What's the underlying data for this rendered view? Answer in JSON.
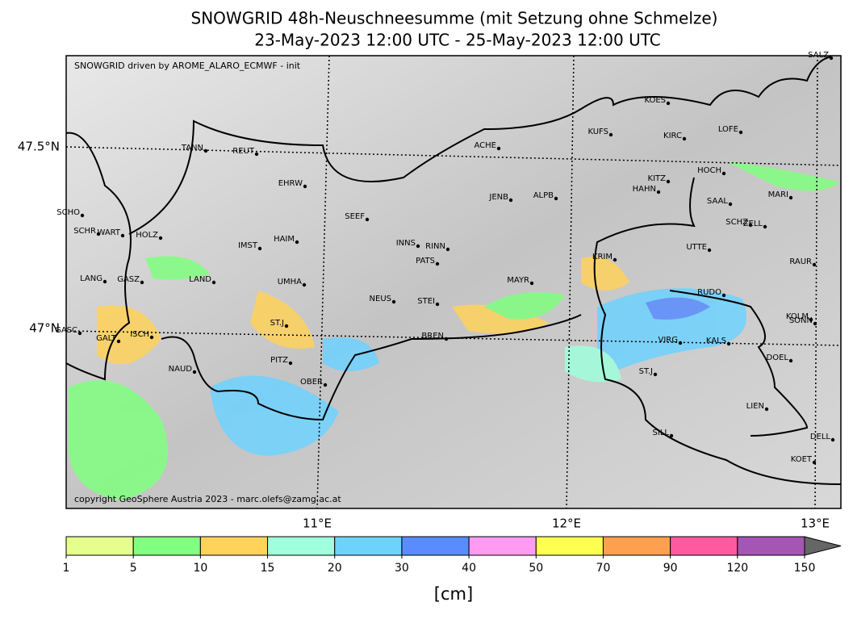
{
  "header": {
    "title": "SNOWGRID 48h-Neuschneesumme (mit Setzung ohne Schmelze)",
    "subtitle": "23-May-2023 12:00 UTC - 25-May-2023 12:00 UTC"
  },
  "map": {
    "source": "SNOWGRID driven by AROME_ALARO_ECMWF - init",
    "copyright": "copyright GeoSphere Austria 2023 - marc.olefs@zamg.ac.at",
    "lat_labels": [
      "47.5°N",
      "47°N"
    ],
    "lon_labels": [
      "11°E",
      "12°E",
      "13°E"
    ],
    "stations": [
      "TANN",
      "REUT",
      "ACHE",
      "KUFS",
      "KOES",
      "KIRC",
      "LOFE",
      "SALZ",
      "EHRW",
      "JENB",
      "ALPB",
      "KITZ",
      "HAHN",
      "HOCH",
      "SAAL",
      "MARI",
      "SCHO",
      "SEEF",
      "SCHR",
      "WART",
      "HOLZ",
      "HAIM",
      "IMST",
      "INNS",
      "RINN",
      "SCHZ",
      "ZELL",
      "UTTE",
      "PATS",
      "KRIM",
      "RAUR",
      "LANG",
      "GASZ",
      "LAND",
      "UMHA",
      "MAYR",
      "RUDO",
      "NEUS",
      "STEI",
      "KOLM",
      "SONN",
      "GASC",
      "ST.J",
      "GALT",
      "ISCH",
      "BREN",
      "VIRG",
      "KALS",
      "DOEL",
      "PITZ",
      "NAUD",
      "ST.J",
      "OBER",
      "LIEN",
      "SILL",
      "DELL",
      "KOET"
    ]
  },
  "legend": {
    "ticks": [
      1,
      5,
      10,
      15,
      20,
      30,
      40,
      50,
      70,
      90,
      120,
      150
    ],
    "colors": [
      "#e6ff8c",
      "#80ff80",
      "#ffd25a",
      "#a0ffdc",
      "#6ed2ff",
      "#5a8cff",
      "#ff9bf0",
      "#ffff50",
      "#ffa050",
      "#ff5aa0",
      "#a555b4"
    ],
    "extend_color": "#666666",
    "unit": "[cm]"
  }
}
